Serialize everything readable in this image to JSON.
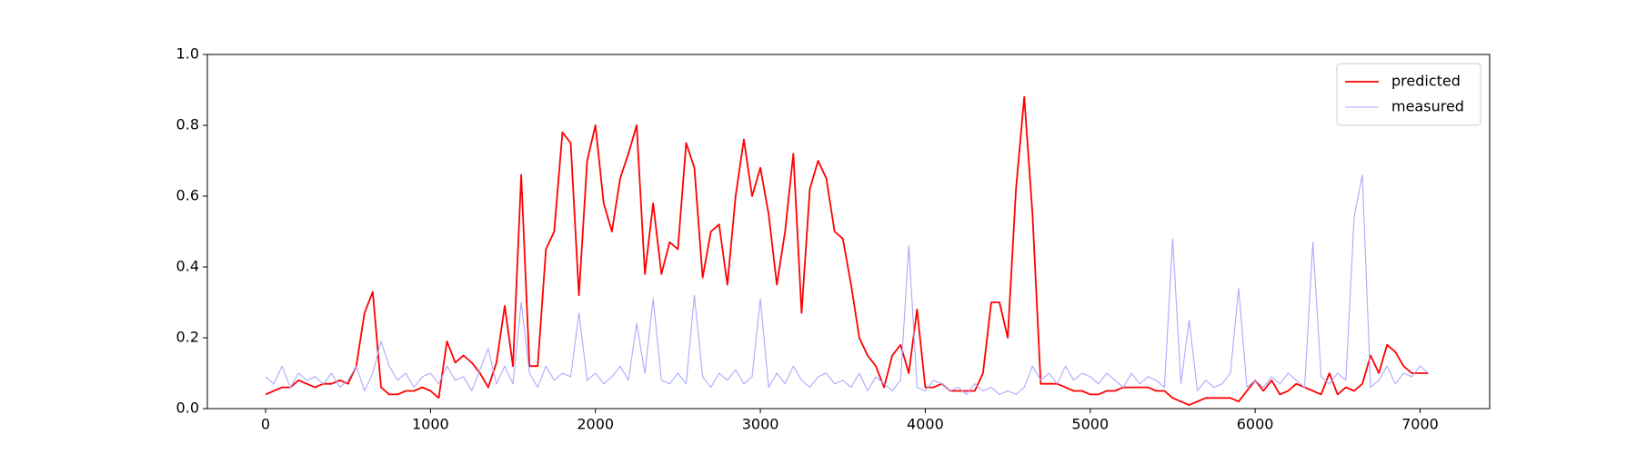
{
  "chart_data": {
    "type": "line",
    "x": [
      0,
      50,
      100,
      150,
      200,
      250,
      300,
      350,
      400,
      450,
      500,
      550,
      600,
      650,
      700,
      750,
      800,
      850,
      900,
      950,
      1000,
      1050,
      1100,
      1150,
      1200,
      1250,
      1300,
      1350,
      1400,
      1450,
      1500,
      1550,
      1600,
      1650,
      1700,
      1750,
      1800,
      1850,
      1900,
      1950,
      2000,
      2050,
      2100,
      2150,
      2200,
      2250,
      2300,
      2350,
      2400,
      2450,
      2500,
      2550,
      2600,
      2650,
      2700,
      2750,
      2800,
      2850,
      2900,
      2950,
      3000,
      3050,
      3100,
      3150,
      3200,
      3250,
      3300,
      3350,
      3400,
      3450,
      3500,
      3550,
      3600,
      3650,
      3700,
      3750,
      3800,
      3850,
      3900,
      3950,
      4000,
      4050,
      4100,
      4150,
      4200,
      4250,
      4300,
      4350,
      4400,
      4450,
      4500,
      4550,
      4600,
      4650,
      4700,
      4750,
      4800,
      4850,
      4900,
      4950,
      5000,
      5050,
      5100,
      5150,
      5200,
      5250,
      5300,
      5350,
      5400,
      5450,
      5500,
      5550,
      5600,
      5650,
      5700,
      5750,
      5800,
      5850,
      5900,
      5950,
      6000,
      6050,
      6100,
      6150,
      6200,
      6250,
      6300,
      6350,
      6400,
      6450,
      6500,
      6550,
      6600,
      6650,
      6700,
      6750,
      6800,
      6850,
      6900,
      6950,
      7000,
      7050
    ],
    "series": [
      {
        "name": "predicted",
        "color": "#ff0000",
        "width": 1.8,
        "values": [
          0.04,
          0.05,
          0.06,
          0.06,
          0.08,
          0.07,
          0.06,
          0.07,
          0.07,
          0.08,
          0.07,
          0.12,
          0.27,
          0.33,
          0.06,
          0.04,
          0.04,
          0.05,
          0.05,
          0.06,
          0.05,
          0.03,
          0.19,
          0.13,
          0.15,
          0.13,
          0.1,
          0.06,
          0.13,
          0.29,
          0.12,
          0.66,
          0.12,
          0.12,
          0.45,
          0.5,
          0.78,
          0.75,
          0.32,
          0.7,
          0.8,
          0.58,
          0.5,
          0.65,
          0.72,
          0.8,
          0.38,
          0.58,
          0.38,
          0.47,
          0.45,
          0.75,
          0.68,
          0.37,
          0.5,
          0.52,
          0.35,
          0.6,
          0.76,
          0.6,
          0.68,
          0.55,
          0.35,
          0.5,
          0.72,
          0.27,
          0.62,
          0.7,
          0.65,
          0.5,
          0.48,
          0.35,
          0.2,
          0.15,
          0.12,
          0.06,
          0.15,
          0.18,
          0.1,
          0.28,
          0.06,
          0.06,
          0.07,
          0.05,
          0.05,
          0.05,
          0.05,
          0.1,
          0.3,
          0.3,
          0.2,
          0.62,
          0.88,
          0.55,
          0.07,
          0.07,
          0.07,
          0.06,
          0.05,
          0.05,
          0.04,
          0.04,
          0.05,
          0.05,
          0.06,
          0.06,
          0.06,
          0.06,
          0.05,
          0.05,
          0.03,
          0.02,
          0.01,
          0.02,
          0.03,
          0.03,
          0.03,
          0.03,
          0.02,
          0.05,
          0.08,
          0.05,
          0.08,
          0.04,
          0.05,
          0.07,
          0.06,
          0.05,
          0.04,
          0.1,
          0.04,
          0.06,
          0.05,
          0.07,
          0.15,
          0.1,
          0.18,
          0.16,
          0.12,
          0.1,
          0.1,
          0.1
        ]
      },
      {
        "name": "measured",
        "color": "#aaaaff",
        "width": 1.1,
        "values": [
          0.09,
          0.07,
          0.12,
          0.06,
          0.1,
          0.08,
          0.09,
          0.07,
          0.1,
          0.06,
          0.08,
          0.12,
          0.05,
          0.1,
          0.19,
          0.12,
          0.08,
          0.1,
          0.06,
          0.09,
          0.1,
          0.07,
          0.12,
          0.08,
          0.09,
          0.05,
          0.11,
          0.17,
          0.07,
          0.12,
          0.07,
          0.3,
          0.1,
          0.06,
          0.12,
          0.08,
          0.1,
          0.09,
          0.27,
          0.08,
          0.1,
          0.07,
          0.09,
          0.12,
          0.08,
          0.24,
          0.1,
          0.31,
          0.08,
          0.07,
          0.1,
          0.07,
          0.32,
          0.09,
          0.06,
          0.1,
          0.08,
          0.11,
          0.07,
          0.09,
          0.31,
          0.06,
          0.1,
          0.07,
          0.12,
          0.08,
          0.06,
          0.09,
          0.1,
          0.07,
          0.08,
          0.06,
          0.1,
          0.05,
          0.09,
          0.07,
          0.05,
          0.08,
          0.46,
          0.06,
          0.05,
          0.08,
          0.07,
          0.05,
          0.06,
          0.04,
          0.07,
          0.05,
          0.06,
          0.04,
          0.05,
          0.04,
          0.06,
          0.12,
          0.08,
          0.1,
          0.07,
          0.12,
          0.08,
          0.1,
          0.09,
          0.07,
          0.1,
          0.08,
          0.06,
          0.1,
          0.07,
          0.09,
          0.08,
          0.06,
          0.48,
          0.07,
          0.25,
          0.05,
          0.08,
          0.06,
          0.07,
          0.1,
          0.34,
          0.06,
          0.08,
          0.06,
          0.09,
          0.07,
          0.1,
          0.08,
          0.06,
          0.47,
          0.09,
          0.07,
          0.1,
          0.08,
          0.54,
          0.66,
          0.06,
          0.08,
          0.12,
          0.07,
          0.1,
          0.09,
          0.12,
          0.1
        ]
      }
    ],
    "xlim": [
      -353,
      7422
    ],
    "xticks": [
      0,
      1000,
      2000,
      3000,
      4000,
      5000,
      6000,
      7000
    ],
    "ylim": [
      0,
      1
    ],
    "yticks": [
      {
        "value": 0,
        "label": "0.0"
      },
      0.2,
      0.4,
      0.6,
      0.8,
      {
        "value": 1,
        "label": "1.0"
      }
    ],
    "grid": false,
    "legend": "upper right"
  }
}
